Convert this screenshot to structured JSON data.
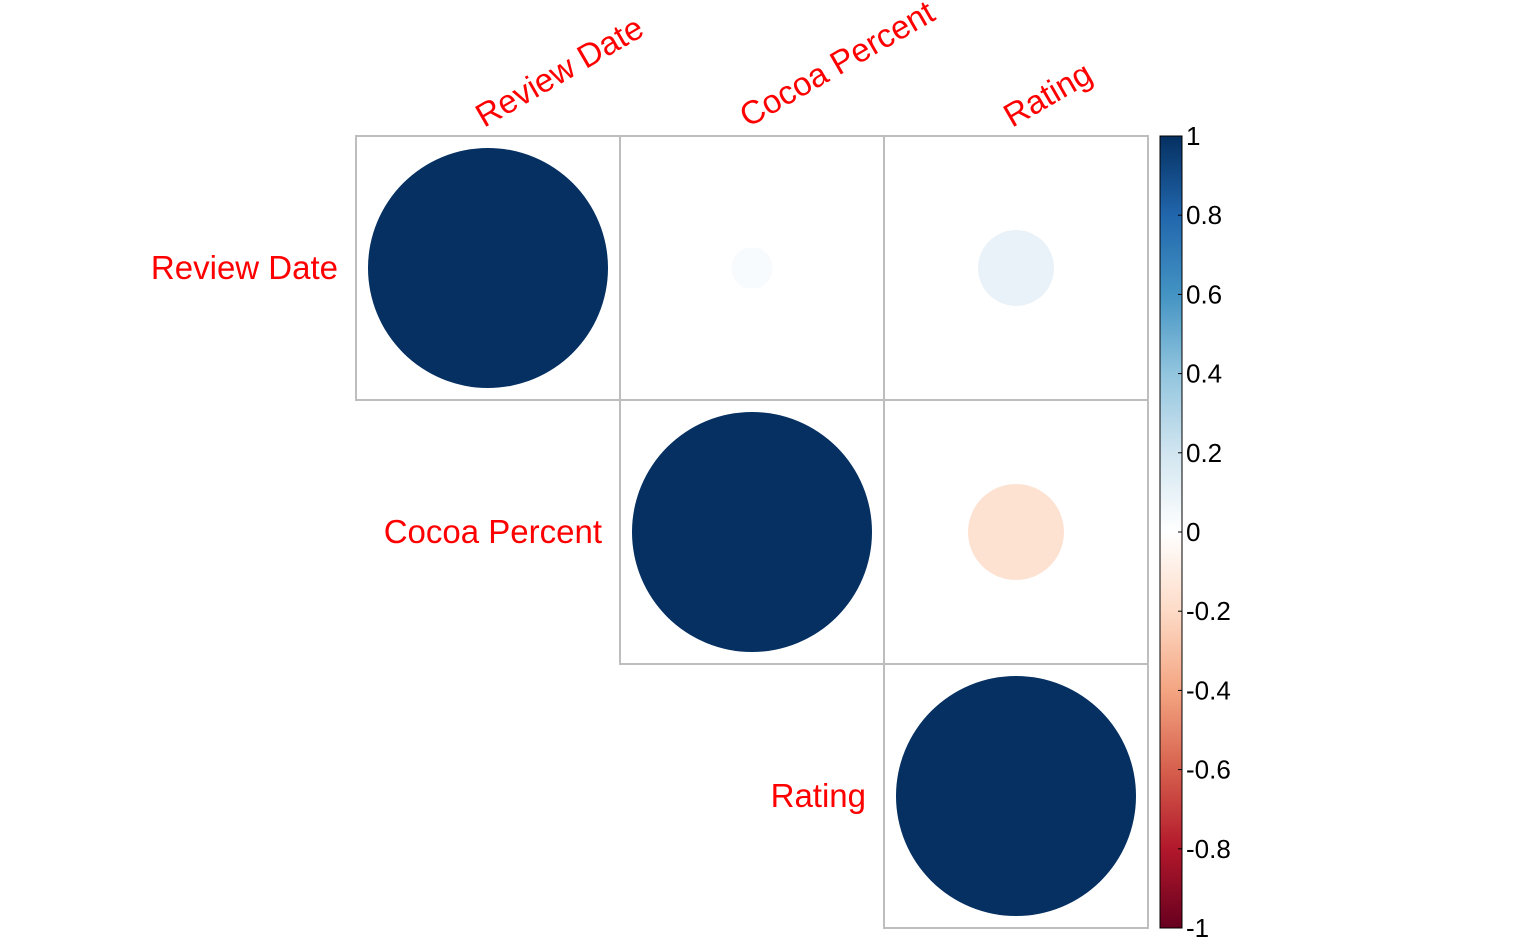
{
  "chart_data": {
    "type": "heatmap",
    "subtype": "correlation-circle-upper",
    "variables": [
      "Review Date",
      "Cocoa Percent",
      "Rating"
    ],
    "matrix": [
      [
        1.0,
        0.03,
        0.1
      ],
      [
        0.03,
        1.0,
        -0.16
      ],
      [
        0.1,
        -0.16,
        1.0
      ]
    ],
    "triangle": "upper",
    "label_color": "#FF0000",
    "grid_color": "#BEBEBE",
    "colorbar": {
      "range": [
        -1,
        1
      ],
      "ticks": [
        "1",
        "0.8",
        "0.6",
        "0.4",
        "0.2",
        "0",
        "-0.2",
        "-0.4",
        "-0.6",
        "-0.8",
        "-1"
      ],
      "colors": [
        "#67001F",
        "#B2182B",
        "#D6604D",
        "#F4A582",
        "#FDDBC7",
        "#FFFFFF",
        "#D1E5F0",
        "#92C5DE",
        "#4393C3",
        "#2166AC",
        "#053061"
      ]
    }
  }
}
